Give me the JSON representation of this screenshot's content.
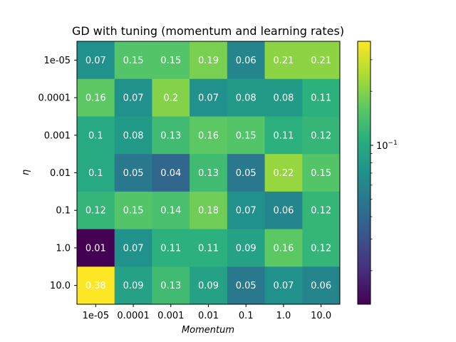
{
  "chart_data": {
    "type": "heatmap",
    "title": "GD with tuning (momentum and learning rates)",
    "xlabel": "Momentum",
    "ylabel": "η",
    "x_categories": [
      "1e-05",
      "0.0001",
      "0.001",
      "0.01",
      "0.1",
      "1.0",
      "10.0"
    ],
    "y_categories": [
      "1e-05",
      "0.0001",
      "0.001",
      "0.01",
      "0.1",
      "1.0",
      "10.0"
    ],
    "values": [
      [
        0.07,
        0.15,
        0.15,
        0.19,
        0.06,
        0.21,
        0.21
      ],
      [
        0.16,
        0.07,
        0.2,
        0.07,
        0.08,
        0.08,
        0.11
      ],
      [
        0.1,
        0.08,
        0.13,
        0.16,
        0.15,
        0.11,
        0.12
      ],
      [
        0.1,
        0.05,
        0.04,
        0.13,
        0.05,
        0.22,
        0.15
      ],
      [
        0.12,
        0.15,
        0.14,
        0.18,
        0.07,
        0.06,
        0.12
      ],
      [
        0.01,
        0.07,
        0.11,
        0.11,
        0.09,
        0.16,
        0.12
      ],
      [
        0.38,
        0.09,
        0.13,
        0.09,
        0.05,
        0.07,
        0.06
      ]
    ],
    "cell_labels": [
      [
        "0.07",
        "0.15",
        "0.15",
        "0.19",
        "0.06",
        "0.21",
        "0.21"
      ],
      [
        "0.16",
        "0.07",
        "0.2",
        "0.07",
        "0.08",
        "0.08",
        "0.11"
      ],
      [
        "0.1",
        "0.08",
        "0.13",
        "0.16",
        "0.15",
        "0.11",
        "0.12"
      ],
      [
        "0.1",
        "0.05",
        "0.04",
        "0.13",
        "0.05",
        "0.22",
        "0.15"
      ],
      [
        "0.12",
        "0.15",
        "0.14",
        "0.18",
        "0.07",
        "0.06",
        "0.12"
      ],
      [
        "0.01",
        "0.07",
        "0.11",
        "0.11",
        "0.09",
        "0.16",
        "0.12"
      ],
      [
        "0.38",
        "0.09",
        "0.13",
        "0.09",
        "0.05",
        "0.07",
        "0.06"
      ]
    ],
    "colorbar": {
      "scale": "log",
      "colormap": "viridis",
      "vmin": 0.013,
      "vmax": 0.38,
      "major_ticks": [
        {
          "value": 0.1,
          "base": "10",
          "exponent": "−1"
        }
      ]
    }
  }
}
